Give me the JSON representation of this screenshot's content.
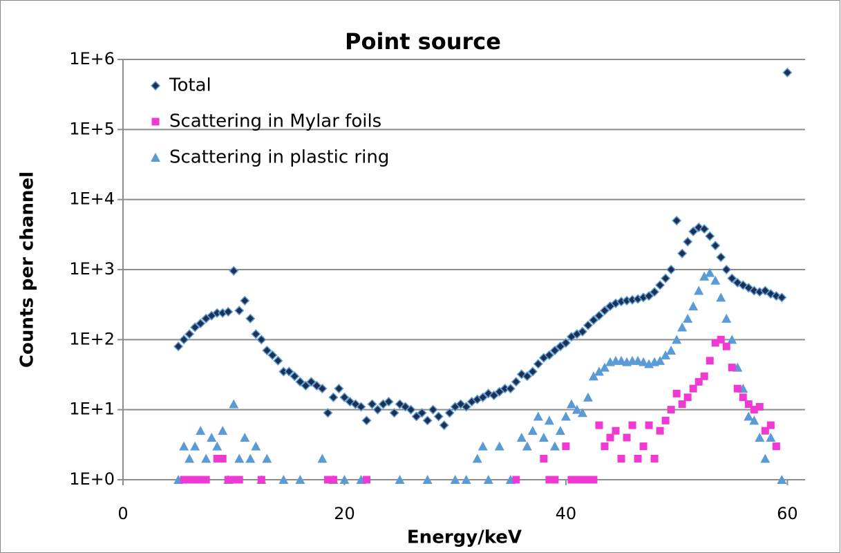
{
  "chart_data": {
    "type": "scatter",
    "title": "Point source",
    "xlabel": "Energy/keV",
    "ylabel": "Counts per channel",
    "log_y": true,
    "grid": true,
    "legend": "upper-left",
    "xlim": [
      0,
      61.6
    ],
    "xticks": [
      0,
      20,
      40,
      60
    ],
    "ylim": [
      1,
      1000000
    ],
    "yticks": [
      {
        "value": 1,
        "label": "1E+0"
      },
      {
        "value": 10,
        "label": "1E+1"
      },
      {
        "value": 100,
        "label": "1E+2"
      },
      {
        "value": 1000,
        "label": "1E+3"
      },
      {
        "value": 10000,
        "label": "1E+4"
      },
      {
        "value": 100000,
        "label": "1E+5"
      },
      {
        "value": 1000000,
        "label": "1E+6"
      }
    ],
    "series": [
      {
        "name": "Total",
        "color": "#1f2f4f",
        "marker": "diamond",
        "x": [
          5,
          5.5,
          6,
          6.5,
          7,
          7.5,
          8,
          8.5,
          9,
          9.5,
          10,
          10.5,
          11,
          11.5,
          12,
          12.5,
          13,
          13.5,
          14,
          14.5,
          15,
          15.5,
          16,
          16.5,
          17,
          17.5,
          18,
          18.5,
          19,
          19.5,
          20,
          20.5,
          21,
          21.5,
          22,
          22.5,
          23,
          23.5,
          24,
          24.5,
          25,
          25.5,
          26,
          26.5,
          27,
          27.5,
          28,
          28.5,
          29,
          29.5,
          30,
          30.5,
          31,
          31.5,
          32,
          32.5,
          33,
          33.5,
          34,
          34.5,
          35,
          35.5,
          36,
          36.5,
          37,
          37.5,
          38,
          38.5,
          39,
          39.5,
          40,
          40.5,
          41,
          41.5,
          42,
          42.5,
          43,
          43.5,
          44,
          44.5,
          45,
          45.5,
          46,
          46.5,
          47,
          47.5,
          48,
          48.5,
          49,
          49.5,
          50,
          50.5,
          51,
          51.5,
          52,
          52.5,
          53,
          53.5,
          54,
          54.5,
          55,
          55.5,
          56,
          56.5,
          57,
          57.5,
          58,
          58.5,
          59,
          59.5,
          60
        ],
        "values": [
          80,
          100,
          120,
          150,
          170,
          200,
          220,
          240,
          240,
          250,
          960,
          260,
          360,
          200,
          120,
          100,
          70,
          60,
          50,
          35,
          35,
          30,
          25,
          22,
          25,
          22,
          20,
          9,
          15,
          20,
          15,
          13,
          12,
          11,
          7,
          12,
          10,
          12,
          13,
          9,
          12,
          11,
          10,
          8,
          9,
          7,
          10,
          8,
          6,
          9,
          11,
          12,
          11,
          13,
          14,
          15,
          17,
          16,
          18,
          20,
          20,
          25,
          32,
          30,
          35,
          45,
          55,
          60,
          70,
          80,
          90,
          110,
          120,
          130,
          160,
          190,
          220,
          260,
          300,
          330,
          350,
          360,
          370,
          380,
          400,
          420,
          480,
          600,
          750,
          1000,
          5000,
          1700,
          2500,
          3500,
          4000,
          3800,
          3000,
          2200,
          1500,
          1000,
          750,
          650,
          600,
          550,
          500,
          480,
          500,
          450,
          420,
          400,
          650000
        ]
      },
      {
        "name": "Scattering in Mylar foils",
        "color": "#ee3ad2",
        "marker": "square",
        "x": [
          5.5,
          6,
          6.5,
          7,
          7.5,
          8.5,
          9,
          9.5,
          10,
          10.5,
          12.5,
          18.5,
          19,
          22,
          35.5,
          38,
          38.5,
          39,
          40,
          40.5,
          41,
          41.5,
          42,
          42.5,
          43,
          43.5,
          44,
          44.5,
          45,
          45.5,
          46,
          46.5,
          47,
          47.5,
          48,
          48.5,
          49,
          49.5,
          50,
          50.5,
          51,
          51.5,
          52,
          52.5,
          53,
          53.5,
          54,
          54.5,
          55,
          55.5,
          56,
          56.5,
          57,
          57.5,
          58,
          58.5,
          59
        ],
        "values": [
          1,
          1,
          1,
          1,
          1,
          2,
          2,
          1,
          1,
          1,
          1,
          1,
          1,
          1,
          1,
          2,
          1,
          1,
          3,
          1,
          1,
          1,
          1,
          1,
          6,
          3,
          4,
          5,
          2,
          4,
          6,
          2,
          3,
          6,
          2,
          5,
          7,
          10,
          17,
          12,
          15,
          20,
          25,
          30,
          50,
          90,
          100,
          80,
          40,
          20,
          15,
          12,
          10,
          11,
          5,
          6,
          3
        ]
      },
      {
        "name": "Scattering in plastic ring",
        "color": "#5b9bd5",
        "marker": "triangle",
        "x": [
          5,
          5.5,
          6,
          6.5,
          7,
          7.5,
          8,
          8.5,
          9,
          9.5,
          10,
          10.5,
          11,
          11.5,
          12,
          12.5,
          13,
          14.5,
          16,
          18,
          19,
          20,
          21.5,
          25,
          27.5,
          30,
          31,
          32,
          32.5,
          33,
          34,
          35,
          36,
          36.5,
          37,
          37.5,
          38,
          38.5,
          39,
          39.5,
          40,
          40.5,
          41,
          41.5,
          42,
          42.5,
          43,
          43.5,
          44,
          44.5,
          45,
          45.5,
          46,
          46.5,
          47,
          47.5,
          48,
          48.5,
          49,
          49.5,
          50,
          50.5,
          51,
          51.5,
          52,
          52.5,
          53,
          53.5,
          54,
          54.5,
          55,
          55.5,
          56,
          56.5,
          57,
          57.5,
          58,
          58.5,
          59.5
        ],
        "values": [
          1,
          3,
          2,
          3,
          5,
          2,
          4,
          3,
          5,
          1,
          12,
          2,
          4,
          2,
          3,
          1,
          2,
          1,
          1,
          2,
          1,
          1,
          1,
          1,
          1,
          1,
          1,
          2,
          3,
          1,
          3,
          1,
          4,
          3,
          5,
          8,
          4,
          7,
          3,
          5,
          8,
          12,
          10,
          9,
          15,
          30,
          35,
          40,
          48,
          50,
          50,
          48,
          50,
          50,
          48,
          45,
          48,
          50,
          60,
          70,
          100,
          150,
          200,
          300,
          500,
          800,
          900,
          700,
          400,
          200,
          100,
          40,
          20,
          8,
          7,
          4,
          2,
          4,
          1
        ]
      }
    ]
  }
}
